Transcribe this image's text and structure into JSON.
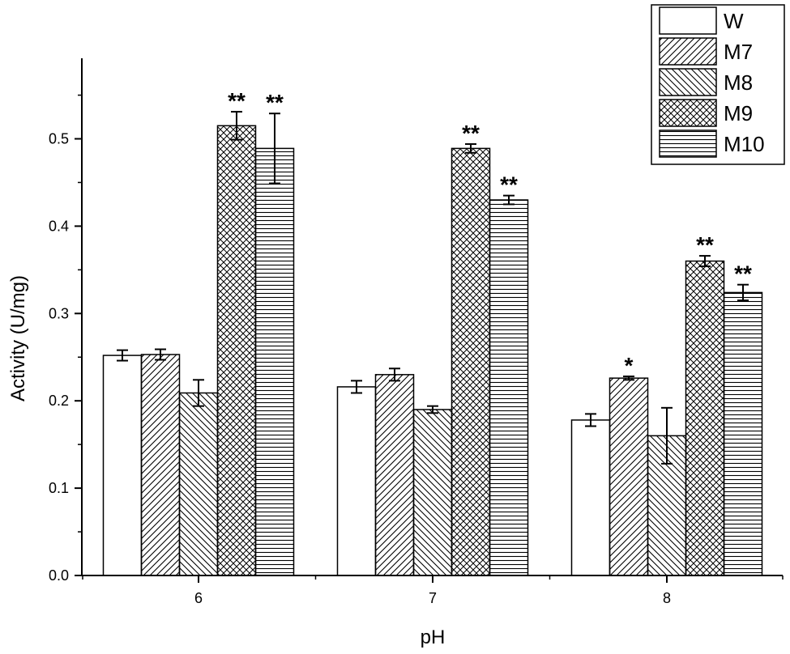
{
  "chart_data": {
    "type": "bar",
    "xlabel": "pH",
    "ylabel": "Activity (U/mg)",
    "categories": [
      "6",
      "7",
      "8"
    ],
    "ylim": [
      0,
      0.58
    ],
    "yticks": [
      "0.0",
      "0.1",
      "0.2",
      "0.3",
      "0.4",
      "0.5"
    ],
    "legend_position": "top-right",
    "grid": false,
    "series": [
      {
        "name": "W",
        "pattern": "none",
        "values": [
          0.252,
          0.216,
          0.178
        ],
        "errors": [
          0.006,
          0.007,
          0.007
        ],
        "significance": [
          "",
          "",
          ""
        ]
      },
      {
        "name": "M7",
        "pattern": "diagonal-up",
        "values": [
          0.253,
          0.23,
          0.226
        ],
        "errors": [
          0.006,
          0.007,
          0.002
        ],
        "significance": [
          "",
          "",
          "*"
        ]
      },
      {
        "name": "M8",
        "pattern": "diagonal-down",
        "values": [
          0.209,
          0.19,
          0.16
        ],
        "errors": [
          0.015,
          0.004,
          0.032
        ],
        "significance": [
          "",
          "",
          ""
        ]
      },
      {
        "name": "M9",
        "pattern": "crosshatch",
        "values": [
          0.515,
          0.489,
          0.36
        ],
        "errors": [
          0.016,
          0.005,
          0.006
        ],
        "significance": [
          "**",
          "**",
          "**"
        ]
      },
      {
        "name": "M10",
        "pattern": "horizontal",
        "values": [
          0.489,
          0.43,
          0.324
        ],
        "errors": [
          0.04,
          0.005,
          0.009
        ],
        "significance": [
          "**",
          "**",
          "**"
        ]
      }
    ]
  }
}
